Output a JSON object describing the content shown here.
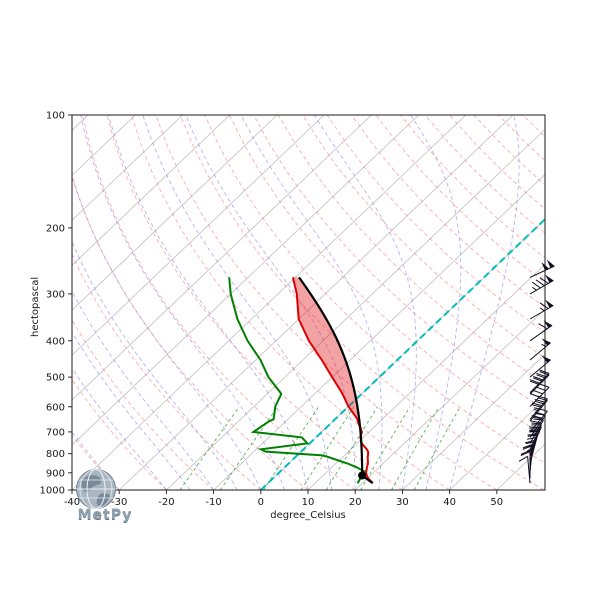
{
  "figure": {
    "ylabel": "hectopascal",
    "xlabel": "degree_Celsius",
    "logo_text": "MetPy"
  },
  "chart_data": {
    "type": "line",
    "subtype": "skew-t-log-p",
    "title": "",
    "xlabel": "degree_Celsius",
    "ylabel": "hectopascal",
    "xlim": [
      -40,
      60.2
    ],
    "ylim": [
      1000,
      100
    ],
    "skew_rotation_deg": 45,
    "grid": false,
    "legend_position": "none",
    "pressure_ticks": [
      100,
      200,
      300,
      400,
      500,
      600,
      700,
      800,
      900,
      1000
    ],
    "temperature_ticks": [
      -40,
      -30,
      -20,
      -10,
      0,
      10,
      20,
      30,
      40,
      50
    ],
    "background": {
      "isotherms_c": {
        "min": -130,
        "max": 60,
        "step": 10,
        "color": "#bfbfbf"
      },
      "dry_adiabats_theta_c": {
        "min": -30,
        "max": 200,
        "step": 10,
        "color": "#ff6666"
      },
      "moist_adiabats_start_c": [
        -40,
        -30,
        -20,
        -15,
        -10,
        -5,
        0,
        5,
        10,
        15,
        20,
        25,
        30,
        35,
        40
      ],
      "moist_adiabat_color": "#7777ee",
      "mixing_ratios_g_kg": [
        1,
        2,
        4,
        7,
        10,
        16,
        24,
        32
      ],
      "mixing_ratio_pressure_range_hpa": [
        1000,
        600
      ],
      "mixing_ratio_color": "#2e9e2e",
      "zero_isotherm_c": 0,
      "zero_isotherm_color": "#00bebe"
    },
    "series": [
      {
        "name": "temperature",
        "color": "#dd0000"
      },
      {
        "name": "dewpoint",
        "color": "#008000"
      },
      {
        "name": "parcel_profile",
        "color": "#000000"
      }
    ],
    "sounding": {
      "pressure_hpa": [
        959,
        931,
        925,
        899,
        892,
        868,
        850,
        814,
        808,
        790,
        779,
        751,
        724,
        700,
        655,
        648,
        599,
        555,
        550,
        500,
        450,
        400,
        350,
        300,
        271
      ],
      "temperature_c": [
        22.2,
        20.2,
        19.8,
        18.4,
        18.2,
        17.4,
        16.8,
        15.2,
        15.0,
        14.2,
        13.4,
        11.0,
        9.4,
        8.5,
        5.2,
        4.8,
        0.0,
        -4.0,
        -4.5,
        -10.0,
        -16.0,
        -23.0,
        -30.0,
        -36.0,
        -40.5
      ],
      "dewpoint_c": [
        19.0,
        18.5,
        18.4,
        17.9,
        17.8,
        15.0,
        12.5,
        6.5,
        5.0,
        -7.5,
        -9.0,
        -0.5,
        -3.0,
        -14.5,
        -13.5,
        -13.0,
        -15.5,
        -17.0,
        -17.5,
        -23.5,
        -29.0,
        -36.0,
        -43.0,
        -50.0,
        -54.0
      ],
      "wind_speed_kt": [
        10,
        12,
        12,
        15,
        15,
        18,
        20,
        22,
        22,
        25,
        25,
        28,
        30,
        32,
        35,
        35,
        40,
        42,
        42,
        48,
        55,
        60,
        65,
        85,
        100
      ],
      "wind_dir_deg": [
        175,
        180,
        180,
        185,
        185,
        190,
        195,
        200,
        200,
        205,
        205,
        210,
        215,
        220,
        220,
        220,
        225,
        225,
        225,
        230,
        230,
        235,
        240,
        240,
        245
      ]
    },
    "parcel": {
      "surface_pressure_hpa": 959,
      "surface_temperature_c": 22.2,
      "surface_dewpoint_c": 19.0
    },
    "cape_shade_color": "#e41a1c",
    "cape_shade_opacity": 0.4,
    "lcl_marker_color": "#000000",
    "barb_color": "#101020"
  }
}
